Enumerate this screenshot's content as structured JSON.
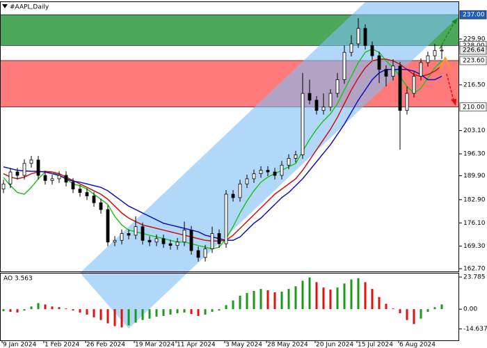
{
  "chart_data": {
    "type": "candlestick",
    "title": "#AAPL,Daily",
    "categories": [
      "9 Jan 2024",
      null,
      null,
      null,
      null,
      null,
      "1 Feb 2024",
      null,
      null,
      null,
      null,
      null,
      "26 Feb 2024",
      null,
      null,
      null,
      null,
      null,
      null,
      "19 Mar 2024",
      null,
      null,
      null,
      null,
      null,
      "11 Apr 2024",
      null,
      null,
      null,
      null,
      null,
      null,
      "3 May 2024",
      null,
      null,
      null,
      null,
      null,
      "28 May 2024",
      null,
      null,
      null,
      null,
      null,
      null,
      "20 Jun 2024",
      null,
      null,
      null,
      null,
      null,
      "15 Jul 2024",
      null,
      null,
      null,
      null,
      null,
      "6 Aug 2024",
      null,
      null,
      null,
      null,
      null,
      null
    ],
    "open": [
      186,
      187.5,
      191,
      190,
      193.5,
      194.5,
      190,
      188.5,
      189,
      190,
      188,
      186,
      185,
      184,
      182,
      180,
      170.5,
      171,
      173,
      172.5,
      175,
      171,
      170.5,
      171.5,
      170,
      169.5,
      170.5,
      174,
      168,
      166,
      168.5,
      173,
      170,
      184.5,
      183.5,
      187.5,
      189,
      190.5,
      191.5,
      191,
      190,
      193,
      195,
      196,
      214,
      212,
      209,
      210,
      214,
      218,
      226,
      228.5,
      233,
      228,
      225,
      221,
      219,
      222,
      209,
      214,
      219,
      223,
      225,
      226.5
    ],
    "high": [
      188.7,
      192.2,
      192.2,
      194.7,
      195.7,
      195.7,
      191.2,
      190.2,
      191.2,
      191.2,
      189.2,
      187.2,
      186.2,
      185.2,
      183.2,
      181.2,
      172.2,
      174.2,
      174.2,
      178,
      176.2,
      172.2,
      172.7,
      172.7,
      171.2,
      171.7,
      176.5,
      175.2,
      169.2,
      169.7,
      175,
      174.2,
      185.7,
      185.7,
      188.7,
      190.2,
      191.7,
      192.7,
      192.7,
      192.2,
      194.2,
      196.2,
      197.2,
      220,
      218,
      213.2,
      214,
      215.2,
      220,
      228,
      231,
      236,
      234.2,
      229.2,
      226.2,
      222.2,
      224,
      223.2,
      216,
      220.2,
      224.2,
      226.2,
      228.5,
      228
    ],
    "low": [
      184.8,
      186.3,
      188.8,
      188.8,
      192.3,
      188.8,
      187.3,
      187.3,
      187.8,
      186.8,
      184.8,
      183.8,
      182.8,
      180.8,
      178.8,
      169.3,
      169.3,
      169.8,
      171.3,
      171.3,
      169.8,
      169.3,
      169.3,
      168.8,
      168.3,
      168.3,
      169.3,
      166.8,
      164.8,
      164.8,
      167.3,
      168.8,
      168.8,
      182.3,
      182.3,
      186.3,
      187.8,
      189.3,
      189.8,
      188.8,
      188.8,
      191.8,
      193.8,
      194.8,
      210.8,
      207.8,
      207.8,
      208.8,
      212.8,
      216.8,
      224.8,
      227.3,
      226.8,
      223.8,
      217,
      216,
      217.8,
      197.5,
      207.8,
      212.8,
      217.8,
      221.8,
      223.8,
      224
    ],
    "close": [
      187.5,
      191,
      190,
      193.5,
      194.5,
      190,
      188.5,
      189,
      190,
      188,
      186,
      185,
      184,
      182,
      180,
      170.5,
      171,
      173,
      172.5,
      175,
      171,
      170.5,
      171.5,
      170,
      169.5,
      170.5,
      174,
      168,
      166,
      168.5,
      173,
      170,
      184.5,
      183.5,
      187.5,
      189,
      190.5,
      191.5,
      191,
      190,
      193,
      195,
      196,
      214,
      212,
      209,
      210,
      214,
      218,
      226,
      228.5,
      233,
      228,
      225,
      221,
      219,
      222,
      209,
      214,
      219,
      223,
      225,
      226.5,
      226.64
    ],
    "up_color": "#ffffff",
    "down_color": "#000000",
    "ma_series": [
      {
        "color": "#1fc41f",
        "values": [
          189.4,
          187,
          185,
          184.5,
          186.5,
          189,
          191,
          191,
          190,
          189,
          187.5,
          187,
          186,
          184.5,
          183,
          181.5,
          178,
          175.5,
          174,
          173.5,
          173,
          172.5,
          172,
          171.5,
          171,
          170.5,
          170.5,
          170,
          169.5,
          169,
          168.5,
          169,
          171.5,
          175,
          179,
          182.5,
          185.5,
          188,
          189.5,
          190.5,
          191.5,
          192.5,
          193.5,
          197,
          200.5,
          203.5,
          206,
          208,
          211,
          215,
          219,
          223,
          226,
          227,
          226,
          223.5,
          221.5,
          219,
          216,
          214,
          215.5,
          218.5,
          221.5,
          223.5
        ]
      },
      {
        "color": "#cc1010",
        "values": [
          190.5,
          189.5,
          189,
          189.5,
          190.5,
          191,
          191.2,
          191,
          190.5,
          189.5,
          188.5,
          187.5,
          186.5,
          185.5,
          184.5,
          183,
          181,
          179,
          177.5,
          176.5,
          175.5,
          175,
          174.5,
          174,
          173.5,
          173,
          172.5,
          172,
          171.5,
          171,
          170.8,
          170.8,
          171,
          172.5,
          174.5,
          176.5,
          178.5,
          180.5,
          182.5,
          184.5,
          186,
          187.5,
          189,
          191.5,
          194.5,
          197.5,
          200.5,
          203.5,
          207,
          211,
          215,
          218.5,
          221.5,
          223.5,
          224,
          224,
          223.5,
          222.5,
          221,
          219.5,
          219,
          219.5,
          220.5,
          222
        ]
      },
      {
        "color": "#1010c0",
        "values": [
          192.5,
          192,
          191.5,
          191.3,
          191.2,
          191.2,
          191,
          190.5,
          190,
          189,
          188.3,
          188,
          187.5,
          187,
          186.5,
          185.5,
          184,
          182.5,
          181,
          180,
          179,
          178,
          177,
          176,
          175.5,
          175,
          174.5,
          174,
          173.5,
          172.5,
          172,
          171.5,
          171,
          171,
          172,
          174,
          176,
          177.5,
          179.5,
          181.5,
          183.5,
          185,
          187,
          189,
          191.5,
          194,
          196.5,
          199,
          202,
          205,
          208.5,
          212,
          215,
          218,
          220,
          221,
          221,
          221,
          221,
          220.5,
          219.5,
          218,
          218,
          219
        ]
      }
    ],
    "zones": [
      {
        "low": 228,
        "high": 237,
        "color": "#4ca85a"
      },
      {
        "low": 210,
        "high": 223.6,
        "color": "#ff7a7a"
      }
    ],
    "levels": [
      {
        "value": 237,
        "label": "237.00",
        "color": "#1f5fbf"
      },
      {
        "value": 228,
        "label": "228.00",
        "color": "#ffffff"
      },
      {
        "value": 226.64,
        "label": "226.64",
        "color": "#e8e8e8"
      },
      {
        "value": 223.6,
        "label": "223.60",
        "color": "#ffffff"
      },
      {
        "value": 210,
        "label": "210.00",
        "color": "#ffffff"
      }
    ],
    "ylim": [
      161.9,
      240.7
    ],
    "yticks": [
      {
        "value": 229.9,
        "label": "229.90"
      },
      {
        "value": 216.5,
        "label": "216.50"
      },
      {
        "value": 203.1,
        "label": "203.10"
      },
      {
        "value": 196.3,
        "label": "196.30"
      },
      {
        "value": 189.9,
        "label": "189.90"
      },
      {
        "value": 182.9,
        "label": "182.90"
      },
      {
        "value": 176.1,
        "label": "176.10"
      },
      {
        "value": 169.3,
        "label": "169.30"
      },
      {
        "value": 162.7,
        "label": "162.70"
      }
    ],
    "ao": {
      "label": "AO 3.563",
      "up_color": "#1a9a1a",
      "down_color": "#e01010",
      "values": [
        -1.5,
        -2,
        -2.5,
        -1,
        2,
        4.5,
        3.5,
        2,
        1.5,
        0.5,
        -1,
        -2.5,
        -4,
        -6,
        -8,
        -10.5,
        -12.5,
        -13.5,
        -12,
        -10,
        -8,
        -7,
        -5.5,
        -5,
        -4,
        -3,
        -2.5,
        -3.5,
        -5,
        -4,
        -2,
        -1,
        3,
        6.5,
        10,
        12,
        13.5,
        15,
        14,
        12.5,
        13,
        15,
        17,
        21,
        23.5,
        20,
        16,
        14.5,
        16,
        19,
        22,
        23,
        20,
        15,
        9,
        4,
        0.5,
        -3,
        -8,
        -11,
        -7,
        -2,
        1.5,
        3.563
      ],
      "ylim": [
        -23.6,
        26.4
      ],
      "yticks": [
        23.785,
        {
          "value": 0,
          "label": "0.00"
        },
        -14.637
      ]
    }
  }
}
